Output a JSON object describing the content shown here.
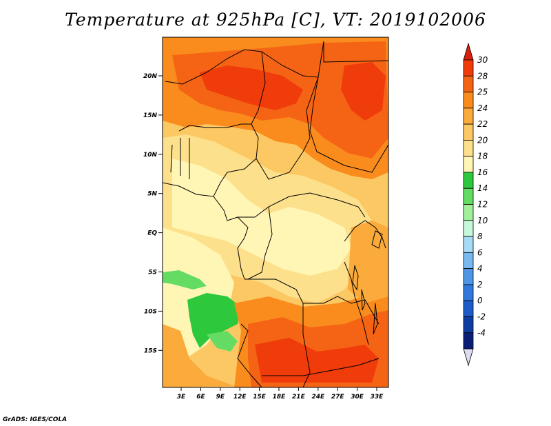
{
  "title": "Temperature at 925hPa [C], VT: 2019102006",
  "footer": "GrADS: IGES/COLA",
  "map": {
    "region": "Central Africa",
    "lat_ticks": [
      "20N",
      "15N",
      "10N",
      "5N",
      "EQ",
      "5S",
      "10S",
      "15S"
    ],
    "lon_ticks": [
      "3E",
      "6E",
      "9E",
      "12E",
      "15E",
      "18E",
      "21E",
      "24E",
      "27E",
      "30E",
      "33E"
    ]
  },
  "colorbar": {
    "levels": [
      {
        "label": "30",
        "color": "#f03c0a"
      },
      {
        "label": "28",
        "color": "#f56414"
      },
      {
        "label": "25",
        "color": "#fa8c1e"
      },
      {
        "label": "24",
        "color": "#fbaa3c"
      },
      {
        "label": "22",
        "color": "#fcc864"
      },
      {
        "label": "20",
        "color": "#fde08c"
      },
      {
        "label": "18",
        "color": "#fff5b4"
      },
      {
        "label": "16",
        "color": "#2dc83c"
      },
      {
        "label": "14",
        "color": "#64dc64"
      },
      {
        "label": "12",
        "color": "#a0f09b"
      },
      {
        "label": "10",
        "color": "#c8f8dc"
      },
      {
        "label": "8",
        "color": "#a6daf5"
      },
      {
        "label": "6",
        "color": "#78b9f0"
      },
      {
        "label": "4",
        "color": "#5096e6"
      },
      {
        "label": "2",
        "color": "#3278dc"
      },
      {
        "label": "0",
        "color": "#1e5ac8"
      },
      {
        "label": "-2",
        "color": "#0f3ca0"
      },
      {
        "label": "-4",
        "color": "#0a1e78"
      }
    ],
    "top_arrow_color": "#dc1e0a",
    "bottom_arrow_color": "#dcdcf0"
  }
}
